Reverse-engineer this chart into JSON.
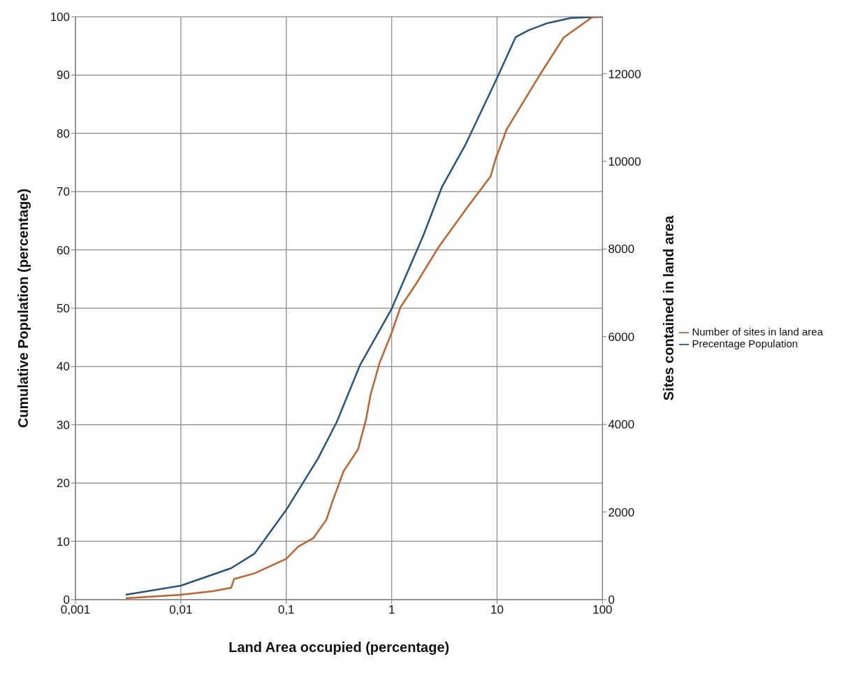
{
  "chart_data": {
    "type": "line",
    "xlabel": "Land Area occupied (percentage)",
    "ylabel": "Cumulative Population (percentage)",
    "y2label": "Sites contained in land area",
    "log": "x",
    "xlim": [
      0.001,
      100
    ],
    "xticks": [
      {
        "value": 0.001,
        "label": "0,001"
      },
      {
        "value": 0.01,
        "label": "0,01"
      },
      {
        "value": 0.1,
        "label": "0,1"
      },
      1,
      10,
      100
    ],
    "ylim": [
      0,
      100
    ],
    "yticks": [
      0,
      10,
      20,
      30,
      40,
      50,
      60,
      70,
      80,
      90,
      100
    ],
    "y2lim": [
      0,
      13300
    ],
    "y2ticks": [
      0,
      2000,
      4000,
      6000,
      8000,
      10000,
      12000
    ],
    "grid": true,
    "legend": "right",
    "marker": "none",
    "line_style": "solid",
    "series": [
      {
        "name": "Precentage Population",
        "color": "#25557f",
        "x": [
          0.003,
          0.01,
          0.03,
          0.05,
          0.1,
          0.2,
          0.3,
          0.5,
          1,
          2,
          3,
          5,
          10,
          15,
          20,
          30,
          50,
          100
        ],
        "values": [
          0.85,
          2.4,
          5.4,
          7.9,
          15.4,
          24.2,
          30.4,
          40.2,
          49.9,
          62.5,
          70.8,
          78,
          89.5,
          96.5,
          97.7,
          98.9,
          99.8,
          100
        ]
      },
      {
        "name": "Number of sites in land area",
        "color": "#c0622a",
        "axis": "y2",
        "x": [
          0.003,
          0.01,
          0.02,
          0.03,
          0.032,
          0.05,
          0.1,
          0.13,
          0.18,
          0.24,
          0.27,
          0.35,
          0.48,
          0.57,
          0.63,
          0.77,
          1,
          1.21,
          1.7,
          2.8,
          5.1,
          8.7,
          9.6,
          12.4,
          25.2,
          43,
          81,
          96
        ],
        "values": [
          30,
          110,
          190,
          270,
          470,
          600,
          930,
          1210,
          1400,
          1820,
          2190,
          2930,
          3430,
          4100,
          4670,
          5410,
          6090,
          6670,
          7200,
          8050,
          8920,
          9660,
          10030,
          10740,
          11960,
          12830,
          13300,
          13300
        ]
      }
    ]
  }
}
